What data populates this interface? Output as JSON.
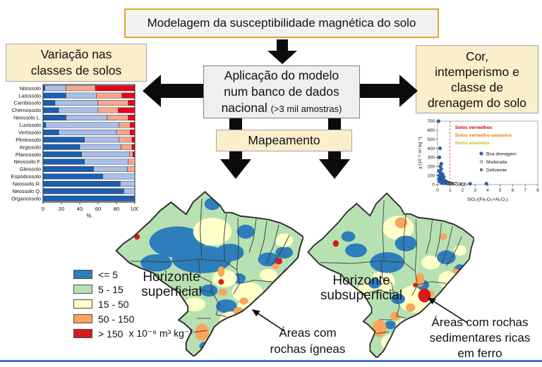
{
  "flow": {
    "title": {
      "label": "Modelagem da susceptibilidade magnética do solo"
    },
    "left": {
      "label": "Variação nas\nclasses de solos"
    },
    "center": {
      "line1": "Aplicação do modelo",
      "line2": "num banco de dados",
      "line3_main": "nacional ",
      "line3_small": "(>3 mil amostras)"
    },
    "right": {
      "label": "Cor,\nintemperismo e\nclasse de\ndrenagem do solo"
    },
    "mapping": {
      "label": "Mapeamento"
    }
  },
  "maps": {
    "superficial_label": "Horizonte\nsuperficial",
    "subsuperficial_label": "Horizonte\nsubsuperficial",
    "legend": {
      "items": [
        {
          "label": "<= 5",
          "color": "#2E7EBC"
        },
        {
          "label": "5 - 15",
          "color": "#B7E1B2"
        },
        {
          "label": "15 - 50",
          "color": "#FFFFC9"
        },
        {
          "label": "50 - 150",
          "color": "#F9A55C"
        },
        {
          "label": "> 150",
          "color": "#D7191C"
        }
      ],
      "unit": "x 10⁻⁶ m³ kg⁻¹"
    },
    "annotations": {
      "igneous": "Áreas com\nrochas ígneas",
      "sedimentary": "Áreas com rochas\nsedimentares ricas\nem ferro"
    }
  },
  "chart_data": [
    {
      "type": "bar",
      "orientation": "horizontal",
      "stacked": true,
      "title": "",
      "xlabel": "%",
      "xlim": [
        0,
        100
      ],
      "xticks": [
        0,
        20,
        40,
        60,
        80,
        100
      ],
      "categories": [
        "Nitossolo",
        "Latossolo",
        "Cambissolo",
        "Chernossolo",
        "Neossolo L.",
        "Luvissolo",
        "Vertissolo",
        "Plintossolo",
        "Argissolo",
        "Planossolo",
        "Neossolo F.",
        "Gleissolo",
        "Espodossolo",
        "Neossolo R.",
        "Neossolo Q.",
        "Organossolo"
      ],
      "series": [
        {
          "name": "serie_azul_escuro",
          "color": "#1C5FB0",
          "values": [
            2,
            25,
            13,
            17,
            25,
            3,
            17,
            45,
            40,
            42,
            45,
            55,
            65,
            84,
            88,
            100
          ]
        },
        {
          "name": "serie_azul_claro",
          "color": "#A9BEE8",
          "values": [
            23,
            33,
            47,
            43,
            45,
            80,
            63,
            38,
            45,
            52,
            48,
            37,
            35,
            16,
            12,
            0
          ]
        },
        {
          "name": "serie_salmao",
          "color": "#F5A98E",
          "values": [
            32,
            28,
            33,
            22,
            23,
            12,
            15,
            14,
            12,
            4,
            7,
            8,
            0,
            0,
            0,
            0
          ]
        },
        {
          "name": "serie_vermelho",
          "color": "#E1071B",
          "values": [
            43,
            14,
            7,
            18,
            7,
            5,
            5,
            3,
            3,
            2,
            0,
            0,
            0,
            0,
            0,
            0
          ]
        }
      ]
    },
    {
      "type": "scatter",
      "title": "",
      "xlabel": "SiO₂/(Fe₂O₃+Al₂O₃)",
      "ylabel": "χ (10⁻⁶ m³ kg⁻¹)",
      "xlim": [
        0,
        8
      ],
      "ylim": [
        0,
        700
      ],
      "xticks": [
        0,
        1,
        2,
        3,
        4,
        5,
        6,
        7,
        8
      ],
      "yticks": [
        0,
        100,
        200,
        300,
        400,
        500,
        600,
        700
      ],
      "vline": {
        "x": 1,
        "style": "dashed",
        "color": "#D85C5C"
      },
      "annotations": [
        {
          "label": "Solos vermelhos",
          "color": "#D40000"
        },
        {
          "label": "Solos vermelho-amarelos",
          "color": "#F07800"
        },
        {
          "label": "Solos amarelos",
          "color": "#BFBE2A"
        }
      ],
      "series": [
        {
          "name": "Boa drenagem",
          "marker": "filled-circle",
          "color": "#2B6CB5",
          "points": [
            [
              0.08,
              700
            ],
            [
              0.2,
              400
            ],
            [
              0.15,
              300
            ],
            [
              0.3,
              230
            ],
            [
              0.22,
              200
            ],
            [
              0.3,
              170
            ],
            [
              0.12,
              150
            ],
            [
              0.25,
              130
            ],
            [
              0.4,
              115
            ],
            [
              0.15,
              100
            ],
            [
              0.3,
              95
            ],
            [
              0.5,
              85
            ],
            [
              0.2,
              75
            ],
            [
              0.35,
              65
            ],
            [
              0.1,
              60
            ],
            [
              0.45,
              55
            ],
            [
              0.25,
              45
            ],
            [
              0.55,
              40
            ],
            [
              0.15,
              35
            ],
            [
              0.4,
              30
            ],
            [
              0.65,
              25
            ],
            [
              0.3,
              20
            ],
            [
              0.5,
              15
            ],
            [
              0.8,
              12
            ],
            [
              2.6,
              10
            ],
            [
              3.9,
              10
            ]
          ]
        },
        {
          "name": "Moderada",
          "marker": "open-circle",
          "color": "#FFFFFF",
          "points": [
            [
              1.4,
              10
            ],
            [
              1.55,
              5
            ],
            [
              1.7,
              7
            ],
            [
              2.0,
              5
            ],
            [
              2.25,
              4
            ]
          ]
        },
        {
          "name": "Deficiente",
          "marker": "filled-circle",
          "color": "#808080",
          "points": [
            [
              0.55,
              50
            ],
            [
              0.65,
              40
            ],
            [
              0.75,
              32
            ],
            [
              0.85,
              26
            ],
            [
              0.95,
              20
            ],
            [
              1.05,
              16
            ],
            [
              1.15,
              13
            ],
            [
              1.25,
              10
            ],
            [
              1.35,
              8
            ],
            [
              1.5,
              6
            ],
            [
              1.65,
              5
            ],
            [
              1.8,
              4
            ],
            [
              0.7,
              18
            ],
            [
              0.9,
              10
            ],
            [
              1.1,
              7
            ],
            [
              0.6,
              12
            ],
            [
              0.8,
              8
            ],
            [
              1.0,
              5
            ],
            [
              1.45,
              12
            ],
            [
              1.95,
              6
            ],
            [
              2.1,
              4
            ]
          ]
        }
      ]
    }
  ]
}
